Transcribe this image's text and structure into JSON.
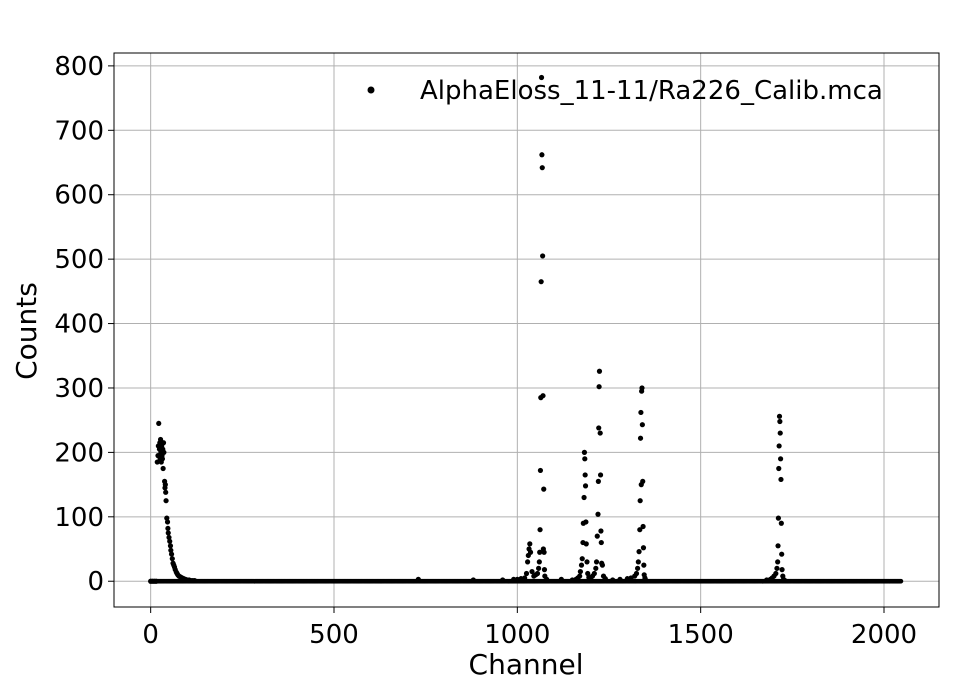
{
  "chart_data": {
    "type": "scatter",
    "xlabel": "Channel",
    "ylabel": "Counts",
    "xlim": [
      -100,
      2150
    ],
    "ylim": [
      -40,
      820
    ],
    "xticks": [
      0,
      500,
      1000,
      1500,
      2000
    ],
    "yticks": [
      0,
      100,
      200,
      300,
      400,
      500,
      600,
      700,
      800
    ],
    "xtick_labels": [
      "0",
      "500",
      "1000",
      "1500",
      "2000"
    ],
    "ytick_labels": [
      "0",
      "100",
      "200",
      "300",
      "400",
      "500",
      "600",
      "700",
      "800"
    ],
    "grid": true,
    "legend_position": "top-right",
    "marker_color": "#000000",
    "series": [
      {
        "name": "AlphaEloss_11-11/Ra226_Calib.mca",
        "baseline": {
          "x_start": 0,
          "x_end": 2047,
          "value": 0
        },
        "points": [
          [
            0,
            0
          ],
          [
            5,
            0
          ],
          [
            10,
            0
          ],
          [
            15,
            0
          ],
          [
            18,
            185
          ],
          [
            20,
            195
          ],
          [
            21,
            210
          ],
          [
            22,
            245
          ],
          [
            24,
            205
          ],
          [
            25,
            215
          ],
          [
            26,
            190
          ],
          [
            27,
            220
          ],
          [
            28,
            200
          ],
          [
            29,
            185
          ],
          [
            30,
            210
          ],
          [
            31,
            195
          ],
          [
            32,
            190
          ],
          [
            33,
            205
          ],
          [
            34,
            175
          ],
          [
            35,
            215
          ],
          [
            36,
            200
          ],
          [
            38,
            155
          ],
          [
            39,
            145
          ],
          [
            40,
            150
          ],
          [
            41,
            138
          ],
          [
            42,
            125
          ],
          [
            44,
            98
          ],
          [
            46,
            92
          ],
          [
            47,
            82
          ],
          [
            48,
            75
          ],
          [
            50,
            68
          ],
          [
            52,
            62
          ],
          [
            54,
            55
          ],
          [
            55,
            48
          ],
          [
            57,
            42
          ],
          [
            59,
            35
          ],
          [
            61,
            28
          ],
          [
            63,
            25
          ],
          [
            65,
            22
          ],
          [
            67,
            18
          ],
          [
            70,
            14
          ],
          [
            72,
            12
          ],
          [
            74,
            10
          ],
          [
            77,
            8
          ],
          [
            80,
            7
          ],
          [
            83,
            6
          ],
          [
            86,
            5
          ],
          [
            90,
            4
          ],
          [
            95,
            3
          ],
          [
            100,
            2
          ],
          [
            105,
            2
          ],
          [
            110,
            1
          ],
          [
            115,
            1
          ],
          [
            120,
            1
          ],
          [
            730,
            3
          ],
          [
            880,
            2
          ],
          [
            960,
            2
          ],
          [
            990,
            3
          ],
          [
            1000,
            3
          ],
          [
            1010,
            4
          ],
          [
            1020,
            5
          ],
          [
            1025,
            12
          ],
          [
            1028,
            30
          ],
          [
            1030,
            40
          ],
          [
            1032,
            50
          ],
          [
            1034,
            58
          ],
          [
            1036,
            45
          ],
          [
            1040,
            15
          ],
          [
            1045,
            8
          ],
          [
            1050,
            10
          ],
          [
            1055,
            12
          ],
          [
            1058,
            20
          ],
          [
            1060,
            30
          ],
          [
            1061,
            45
          ],
          [
            1062,
            80
          ],
          [
            1063,
            172
          ],
          [
            1064,
            285
          ],
          [
            1065,
            465
          ],
          [
            1066,
            782
          ],
          [
            1067,
            662
          ],
          [
            1068,
            642
          ],
          [
            1069,
            505
          ],
          [
            1070,
            288
          ],
          [
            1071,
            50
          ],
          [
            1072,
            143
          ],
          [
            1073,
            45
          ],
          [
            1074,
            18
          ],
          [
            1075,
            8
          ],
          [
            1080,
            3
          ],
          [
            1120,
            3
          ],
          [
            1150,
            2
          ],
          [
            1160,
            3
          ],
          [
            1165,
            5
          ],
          [
            1170,
            8
          ],
          [
            1172,
            15
          ],
          [
            1175,
            25
          ],
          [
            1177,
            35
          ],
          [
            1179,
            60
          ],
          [
            1180,
            90
          ],
          [
            1182,
            130
          ],
          [
            1183,
            200
          ],
          [
            1184,
            190
          ],
          [
            1185,
            165
          ],
          [
            1186,
            148
          ],
          [
            1187,
            92
          ],
          [
            1188,
            58
          ],
          [
            1190,
            30
          ],
          [
            1192,
            12
          ],
          [
            1195,
            6
          ],
          [
            1198,
            3
          ],
          [
            1200,
            5
          ],
          [
            1205,
            8
          ],
          [
            1210,
            12
          ],
          [
            1214,
            20
          ],
          [
            1216,
            30
          ],
          [
            1218,
            70
          ],
          [
            1220,
            104
          ],
          [
            1221,
            155
          ],
          [
            1222,
            238
          ],
          [
            1223,
            302
          ],
          [
            1224,
            326
          ],
          [
            1226,
            230
          ],
          [
            1227,
            165
          ],
          [
            1228,
            78
          ],
          [
            1229,
            60
          ],
          [
            1230,
            28
          ],
          [
            1232,
            25
          ],
          [
            1235,
            8
          ],
          [
            1240,
            4
          ],
          [
            1260,
            2
          ],
          [
            1280,
            3
          ],
          [
            1300,
            4
          ],
          [
            1310,
            5
          ],
          [
            1320,
            8
          ],
          [
            1325,
            12
          ],
          [
            1328,
            20
          ],
          [
            1330,
            30
          ],
          [
            1332,
            46
          ],
          [
            1334,
            80
          ],
          [
            1335,
            125
          ],
          [
            1336,
            222
          ],
          [
            1337,
            262
          ],
          [
            1338,
            150
          ],
          [
            1339,
            295
          ],
          [
            1340,
            300
          ],
          [
            1341,
            243
          ],
          [
            1342,
            155
          ],
          [
            1343,
            85
          ],
          [
            1344,
            52
          ],
          [
            1345,
            25
          ],
          [
            1346,
            10
          ],
          [
            1348,
            5
          ],
          [
            1350,
            2
          ],
          [
            1680,
            2
          ],
          [
            1690,
            3
          ],
          [
            1695,
            5
          ],
          [
            1700,
            8
          ],
          [
            1705,
            12
          ],
          [
            1708,
            20
          ],
          [
            1710,
            30
          ],
          [
            1711,
            55
          ],
          [
            1712,
            98
          ],
          [
            1713,
            175
          ],
          [
            1714,
            210
          ],
          [
            1715,
            256
          ],
          [
            1716,
            248
          ],
          [
            1717,
            230
          ],
          [
            1718,
            190
          ],
          [
            1719,
            158
          ],
          [
            1720,
            90
          ],
          [
            1721,
            42
          ],
          [
            1722,
            18
          ],
          [
            1724,
            8
          ],
          [
            1726,
            3
          ],
          [
            1730,
            1
          ]
        ]
      }
    ]
  }
}
